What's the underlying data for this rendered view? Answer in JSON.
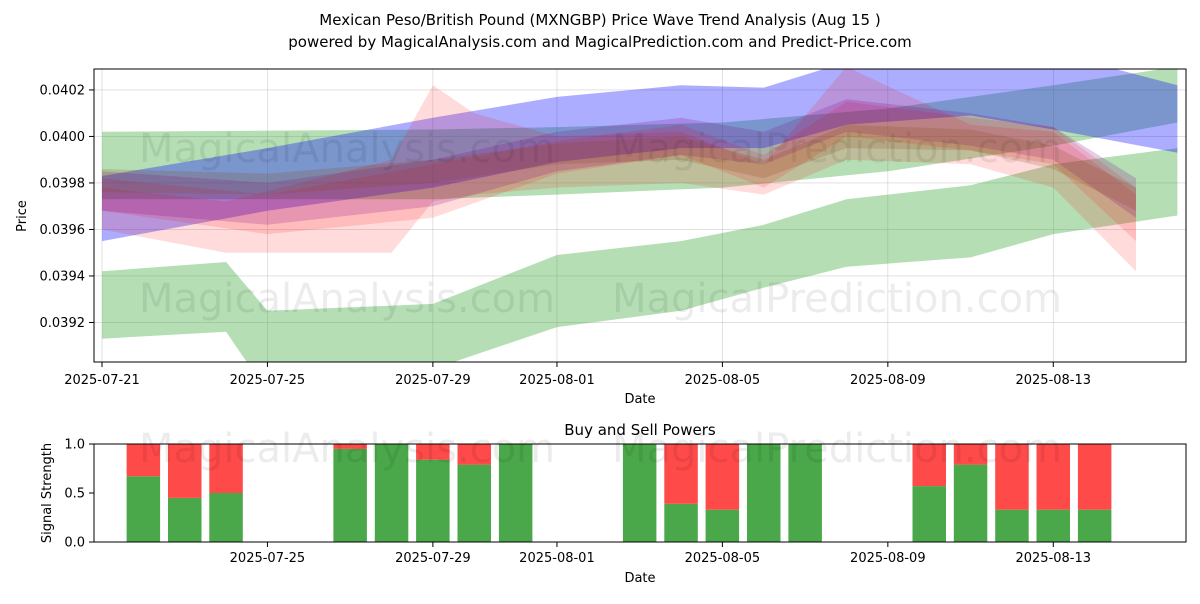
{
  "title_line1": "Mexican Peso/British Pound (MXNGBP) Price Wave Trend Analysis (Aug 15 )",
  "title_line2": "powered by MagicalAnalysis.com and MagicalPrediction.com and Predict-Price.com",
  "watermarks": [
    "MagicalAnalysis.com",
    "MagicalPrediction.com"
  ],
  "chart_data": [
    {
      "type": "area",
      "title": "",
      "xlabel": "Date",
      "ylabel": "Price",
      "x_ticks": [
        "2025-07-21",
        "2025-07-25",
        "2025-07-29",
        "2025-08-01",
        "2025-08-05",
        "2025-08-09",
        "2025-08-13"
      ],
      "y_ticks": [
        "0.0392",
        "0.0394",
        "0.0396",
        "0.0398",
        "0.0400",
        "0.0402"
      ],
      "ylim": [
        0.03903,
        0.04029
      ],
      "xlim": [
        "2025-07-20",
        "2025-08-17"
      ],
      "grid": true,
      "colors": {
        "green": "#2ca02c",
        "blue": "#0000ff",
        "red": "#ff0000",
        "purple": "#800080",
        "brown": "#8b4513"
      },
      "series": [
        {
          "color": "green",
          "x": [
            "2025-07-21",
            "2025-07-24",
            "2025-07-25",
            "2025-07-29",
            "2025-08-01",
            "2025-08-04",
            "2025-08-06",
            "2025-08-08",
            "2025-08-11",
            "2025-08-13",
            "2025-08-16"
          ],
          "upper": [
            0.03942,
            0.03946,
            0.03925,
            0.03928,
            0.03949,
            0.03955,
            0.03962,
            0.03973,
            0.03979,
            0.03988,
            0.03995
          ],
          "lower": [
            0.03913,
            0.03916,
            0.0389,
            0.039,
            0.03918,
            0.03925,
            0.03935,
            0.03944,
            0.03948,
            0.03958,
            0.03966
          ]
        },
        {
          "color": "green",
          "x": [
            "2025-07-21",
            "2025-07-29",
            "2025-08-01",
            "2025-08-05",
            "2025-08-09",
            "2025-08-13",
            "2025-08-16"
          ],
          "upper": [
            0.04002,
            0.04003,
            0.04004,
            0.04006,
            0.04012,
            0.04022,
            0.0403
          ],
          "lower": [
            0.03973,
            0.03973,
            0.03975,
            0.03978,
            0.03985,
            0.03996,
            0.04006
          ]
        },
        {
          "color": "blue",
          "x": [
            "2025-07-21",
            "2025-07-25",
            "2025-07-29",
            "2025-08-01",
            "2025-08-04",
            "2025-08-06",
            "2025-08-08",
            "2025-08-11",
            "2025-08-13",
            "2025-08-16"
          ],
          "upper": [
            0.03983,
            0.03995,
            0.04008,
            0.04017,
            0.04022,
            0.04021,
            0.04032,
            0.04036,
            0.04036,
            0.04022
          ],
          "lower": [
            0.03955,
            0.03968,
            0.03978,
            0.03989,
            0.03995,
            0.03995,
            0.04005,
            0.04009,
            0.04003,
            0.03993
          ]
        },
        {
          "color": "red",
          "x": [
            "2025-07-21",
            "2025-07-24",
            "2025-07-28",
            "2025-07-29",
            "2025-07-30",
            "2025-08-01",
            "2025-08-04",
            "2025-08-06",
            "2025-08-08",
            "2025-08-11",
            "2025-08-13",
            "2025-08-15"
          ],
          "upper": [
            0.03978,
            0.03972,
            0.0399,
            0.04022,
            0.0401,
            0.04,
            0.04002,
            0.03988,
            0.0403,
            0.04005,
            0.04002,
            0.03975
          ],
          "lower": [
            0.0396,
            0.0395,
            0.0395,
            0.03972,
            0.03975,
            0.03978,
            0.0398,
            0.03975,
            0.0399,
            0.03988,
            0.03978,
            0.03942
          ]
        },
        {
          "color": "red",
          "x": [
            "2025-07-21",
            "2025-07-25",
            "2025-07-29",
            "2025-08-01",
            "2025-08-04",
            "2025-08-06",
            "2025-08-08",
            "2025-08-11",
            "2025-08-13",
            "2025-08-15"
          ],
          "upper": [
            0.03982,
            0.03975,
            0.03988,
            0.03998,
            0.04005,
            0.03992,
            0.04015,
            0.04008,
            0.04004,
            0.03978
          ],
          "lower": [
            0.03968,
            0.03958,
            0.03965,
            0.03984,
            0.03992,
            0.03978,
            0.04,
            0.03994,
            0.03988,
            0.03955
          ]
        },
        {
          "color": "purple",
          "x": [
            "2025-07-21",
            "2025-07-25",
            "2025-07-29",
            "2025-08-01",
            "2025-08-04",
            "2025-08-06",
            "2025-08-08",
            "2025-08-11",
            "2025-08-13",
            "2025-08-15"
          ],
          "upper": [
            0.03985,
            0.0398,
            0.0399,
            0.04002,
            0.04008,
            0.04002,
            0.04016,
            0.0401,
            0.04004,
            0.03982
          ],
          "lower": [
            0.03968,
            0.03962,
            0.0397,
            0.03985,
            0.03992,
            0.03988,
            0.04002,
            0.03996,
            0.0399,
            0.03965
          ]
        },
        {
          "color": "brown",
          "x": [
            "2025-07-21",
            "2025-07-25",
            "2025-07-29",
            "2025-08-01",
            "2025-08-04",
            "2025-08-06",
            "2025-08-08",
            "2025-08-11",
            "2025-08-13",
            "2025-08-15"
          ],
          "upper": [
            0.03986,
            0.03984,
            0.0399,
            0.03997,
            0.04,
            0.0399,
            0.04005,
            0.04003,
            0.03996,
            0.03978
          ],
          "lower": [
            0.03976,
            0.03975,
            0.0398,
            0.03988,
            0.0399,
            0.03982,
            0.03995,
            0.03994,
            0.03986,
            0.03968
          ]
        }
      ]
    },
    {
      "type": "bar",
      "title": "Buy and Sell Powers",
      "xlabel": "Date",
      "ylabel": "Signal Strength",
      "x_ticks": [
        "2025-07-25",
        "2025-07-29",
        "2025-08-01",
        "2025-08-05",
        "2025-08-09",
        "2025-08-13"
      ],
      "y_ticks": [
        "0.0",
        "0.5",
        "1.0"
      ],
      "ylim": [
        0,
        1
      ],
      "xlim": [
        "2025-07-20",
        "2025-08-17"
      ],
      "colors": {
        "buy": "#4aa84a",
        "sell": "#ff4a4a"
      },
      "categories": [
        "2025-07-22",
        "2025-07-23",
        "2025-07-24",
        "2025-07-27",
        "2025-07-28",
        "2025-07-29",
        "2025-07-30",
        "2025-07-31",
        "2025-08-03",
        "2025-08-04",
        "2025-08-05",
        "2025-08-06",
        "2025-08-07",
        "2025-08-10",
        "2025-08-11",
        "2025-08-12",
        "2025-08-13",
        "2025-08-14"
      ],
      "series": [
        {
          "name": "buy",
          "values": [
            0.67,
            0.45,
            0.5,
            0.95,
            1.0,
            0.84,
            0.79,
            1.0,
            1.0,
            0.39,
            0.33,
            1.0,
            1.0,
            0.57,
            0.79,
            0.33,
            0.33,
            0.33
          ]
        },
        {
          "name": "sell",
          "values": [
            0.33,
            0.55,
            0.5,
            0.05,
            0.0,
            0.16,
            0.21,
            0.0,
            0.0,
            0.61,
            0.67,
            0.0,
            0.0,
            0.43,
            0.21,
            0.67,
            0.67,
            0.67
          ]
        }
      ]
    }
  ]
}
